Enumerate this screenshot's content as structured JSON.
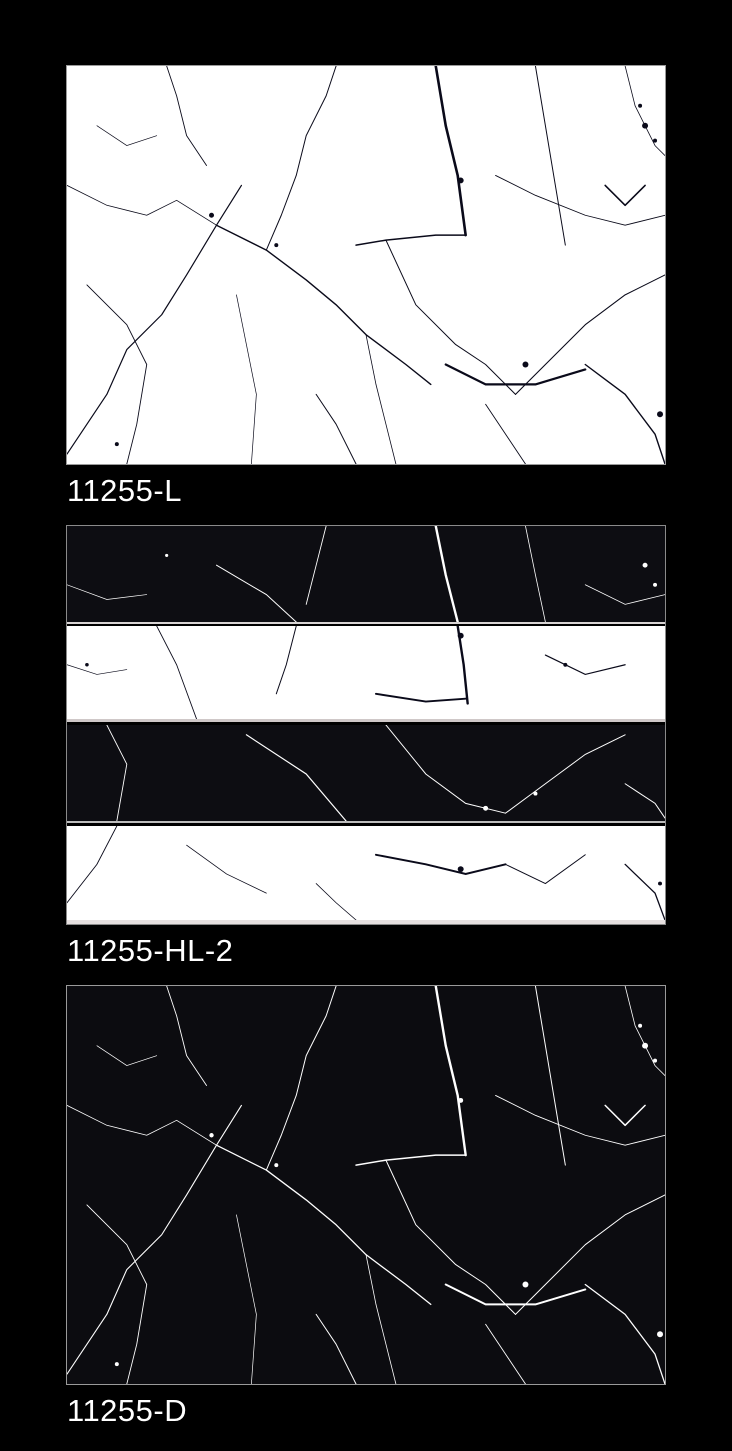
{
  "tiles": [
    {
      "code": "11255-L",
      "style": "white marble with black veins",
      "base_color": "#ffffff",
      "vein_color": "#0a0a1a"
    },
    {
      "code": "11255-HL-2",
      "style": "alternating black and white marble bands",
      "base_color": "#0d0d12",
      "vein_color": "#ffffff"
    },
    {
      "code": "11255-D",
      "style": "black marble with white veins",
      "base_color": "#0c0c10",
      "vein_color": "#ffffff"
    }
  ],
  "labels": {
    "light": "11255-L",
    "highlight": "11255-HL-2",
    "dark": "11255-D"
  }
}
